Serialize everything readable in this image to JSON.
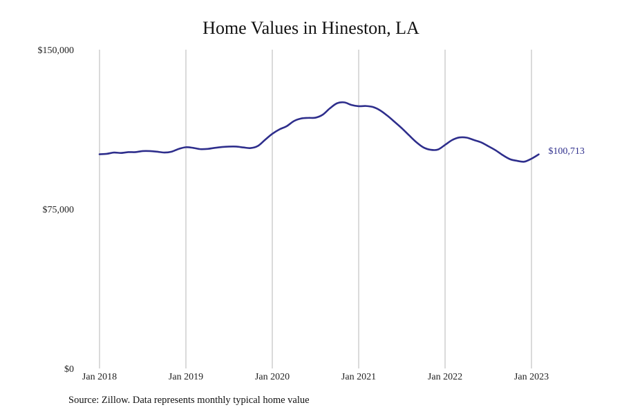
{
  "colors": {
    "line": "#2e2e8c",
    "grid": "#b5b5b5",
    "text": "#222222"
  },
  "chart_data": {
    "type": "line",
    "title": "Home Values in Hineston, LA",
    "xlabel": "",
    "ylabel": "",
    "ylim": [
      0,
      150000
    ],
    "yticks": [
      {
        "value": 0,
        "label": "$0"
      },
      {
        "value": 75000,
        "label": "$75,000"
      },
      {
        "value": 150000,
        "label": "$150,000"
      }
    ],
    "xlim": [
      "2018-01",
      "2023-01"
    ],
    "xticks": [
      {
        "value": "2018-01",
        "label": "Jan 2018"
      },
      {
        "value": "2019-01",
        "label": "Jan 2019"
      },
      {
        "value": "2020-01",
        "label": "Jan 2020"
      },
      {
        "value": "2021-01",
        "label": "Jan 2021"
      },
      {
        "value": "2022-01",
        "label": "Jan 2022"
      },
      {
        "value": "2023-01",
        "label": "Jan 2023"
      }
    ],
    "grid": {
      "vertical": true,
      "horizontal": false
    },
    "series": [
      {
        "x": [
          "2018-01",
          "2018-02",
          "2018-03",
          "2018-04",
          "2018-05",
          "2018-06",
          "2018-07",
          "2018-08",
          "2018-09",
          "2018-10",
          "2018-11",
          "2018-12",
          "2019-01",
          "2019-02",
          "2019-03",
          "2019-04",
          "2019-05",
          "2019-06",
          "2019-07",
          "2019-08",
          "2019-09",
          "2019-10",
          "2019-11",
          "2019-12",
          "2020-01",
          "2020-02",
          "2020-03",
          "2020-04",
          "2020-05",
          "2020-06",
          "2020-07",
          "2020-08",
          "2020-09",
          "2020-10",
          "2020-11",
          "2020-12",
          "2021-01",
          "2021-02",
          "2021-03",
          "2021-04",
          "2021-05",
          "2021-06",
          "2021-07",
          "2021-08",
          "2021-09",
          "2021-10",
          "2021-11",
          "2021-12",
          "2022-01",
          "2022-02",
          "2022-03",
          "2022-04",
          "2022-05",
          "2022-06",
          "2022-07",
          "2022-08",
          "2022-09",
          "2022-10",
          "2022-11",
          "2022-12",
          "2023-01",
          "2023-02"
        ],
        "values": [
          100800,
          101000,
          101600,
          101400,
          101800,
          101800,
          102300,
          102300,
          102000,
          101600,
          102000,
          103300,
          104100,
          103800,
          103200,
          103300,
          103800,
          104200,
          104400,
          104400,
          104000,
          103700,
          104700,
          107600,
          110400,
          112500,
          114000,
          116400,
          117600,
          117900,
          118000,
          119400,
          122400,
          124800,
          125200,
          124000,
          123400,
          123500,
          123000,
          121400,
          118900,
          116000,
          113000,
          109700,
          106500,
          104000,
          102900,
          103000,
          105200,
          107500,
          108700,
          108600,
          107500,
          106400,
          104600,
          102700,
          100400,
          98500,
          97700,
          97300,
          98700,
          100713
        ]
      }
    ],
    "end_label": "$100,713"
  },
  "source_note": "Source: Zillow. Data represents monthly typical home value"
}
